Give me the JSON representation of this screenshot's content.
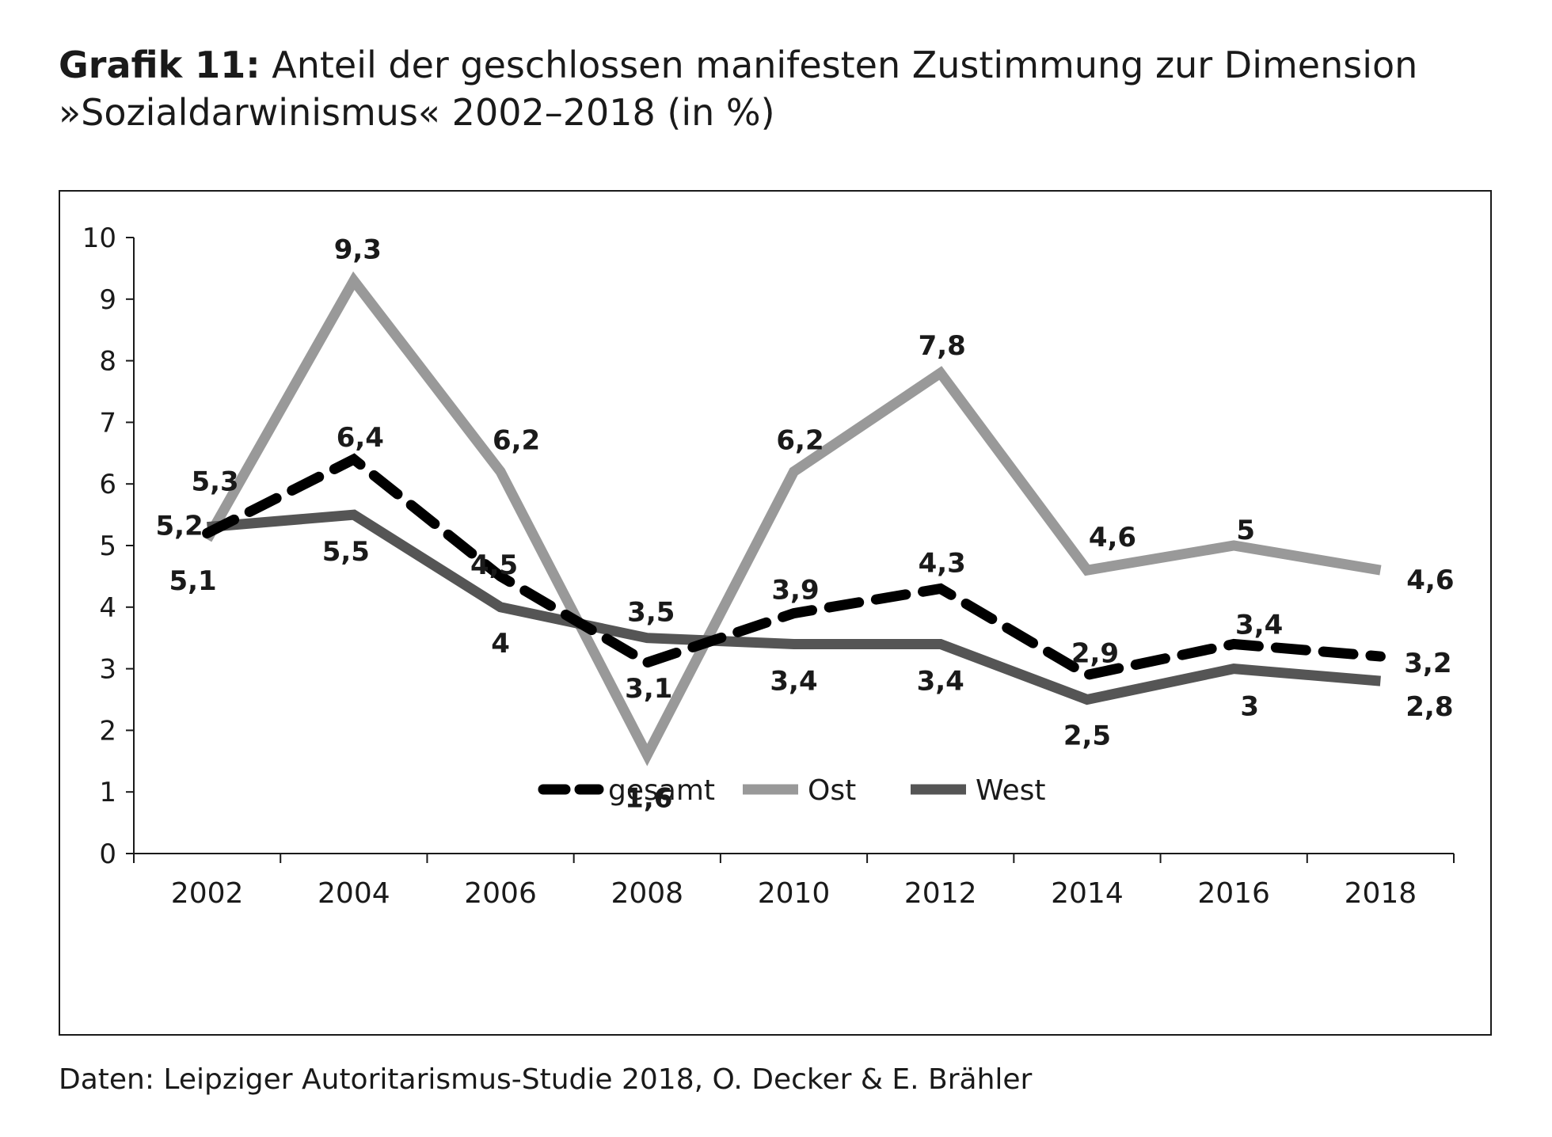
{
  "title": {
    "number": "Grafik 11:",
    "line1": "Anteil der geschlossen manifesten Zustimmung zur Dimension",
    "line2": "»Sozialdarwinismus« 2002–2018 (in %)"
  },
  "source": "Daten: Leipziger Autoritarismus-Studie 2018, O. Decker & E. Brähler",
  "chart_data": {
    "type": "line",
    "categories": [
      "2002",
      "2004",
      "2006",
      "2008",
      "2010",
      "2012",
      "2014",
      "2016",
      "2018"
    ],
    "y_ticks": [
      "0",
      "1",
      "2",
      "3",
      "4",
      "5",
      "6",
      "7",
      "8",
      "9",
      "10"
    ],
    "ylim": [
      0,
      10
    ],
    "grid": false,
    "legend_position": "bottom",
    "series": [
      {
        "name": "gesamt",
        "values": [
          5.2,
          6.4,
          4.5,
          3.1,
          3.9,
          4.3,
          2.9,
          3.4,
          3.2
        ],
        "labels": [
          "5,2",
          "6,4",
          "4,5",
          "3,1",
          "3,9",
          "4,3",
          "2,9",
          "3,4",
          "3,2"
        ],
        "color": "#000000",
        "style": "dashed"
      },
      {
        "name": "Ost",
        "values": [
          5.1,
          9.3,
          6.2,
          1.6,
          6.2,
          7.8,
          4.6,
          5.0,
          4.6
        ],
        "labels": [
          "5,1",
          "9,3",
          "6,2",
          "1,6",
          "6,2",
          "7,8",
          "4,6",
          "5",
          "4,6"
        ],
        "color": "#999999",
        "style": "solid"
      },
      {
        "name": "West",
        "values": [
          5.3,
          5.5,
          4.0,
          3.5,
          3.4,
          3.4,
          2.5,
          3.0,
          2.8
        ],
        "labels": [
          "5,3",
          "5,5",
          "4",
          "3,5",
          "3,4",
          "3,4",
          "2,5",
          "3",
          "2,8"
        ],
        "color": "#555555",
        "style": "solid"
      }
    ]
  }
}
